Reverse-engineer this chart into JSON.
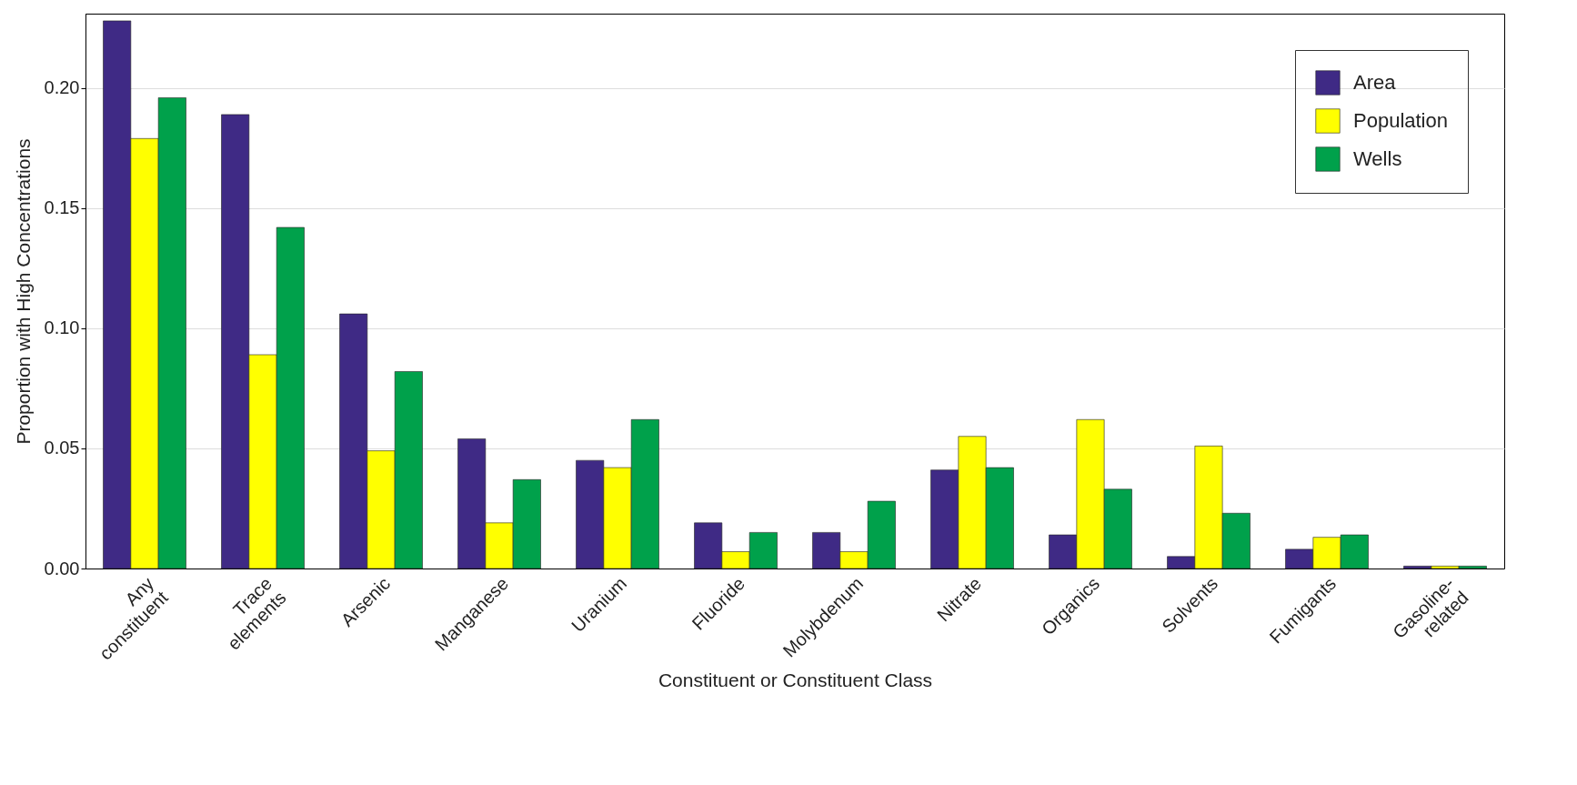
{
  "chart_data": {
    "type": "bar",
    "xlabel": "Constituent or Constituent Class",
    "ylabel": "Proportion with High Concentrations",
    "categories": [
      "Any constituent",
      "Trace elements",
      "Arsenic",
      "Manganese",
      "Uranium",
      "Fluoride",
      "Molybdenum",
      "Nitrate",
      "Organics",
      "Solvents",
      "Fumigants",
      "Gasoline-related"
    ],
    "series": [
      {
        "name": "Area",
        "color": "#3f2a85",
        "values": [
          0.228,
          0.189,
          0.106,
          0.054,
          0.045,
          0.019,
          0.015,
          0.041,
          0.014,
          0.005,
          0.008,
          0.001
        ]
      },
      {
        "name": "Population",
        "color": "#ffff00",
        "values": [
          0.179,
          0.089,
          0.049,
          0.019,
          0.042,
          0.007,
          0.007,
          0.055,
          0.062,
          0.051,
          0.013,
          0.001
        ]
      },
      {
        "name": "Wells",
        "color": "#00a14b",
        "values": [
          0.196,
          0.142,
          0.082,
          0.037,
          0.062,
          0.015,
          0.028,
          0.042,
          0.033,
          0.023,
          0.014,
          0.001
        ]
      }
    ],
    "ylim": [
      0,
      0.231
    ],
    "yticks": [
      {
        "value": 0,
        "label": "0.00"
      },
      {
        "value": 0.05,
        "label": "0.05"
      },
      {
        "value": 0.1,
        "label": "0.10"
      },
      {
        "value": 0.15,
        "label": "0.15"
      },
      {
        "value": 0.2,
        "label": "0.20"
      }
    ],
    "grid": "y",
    "legend": "top right"
  }
}
